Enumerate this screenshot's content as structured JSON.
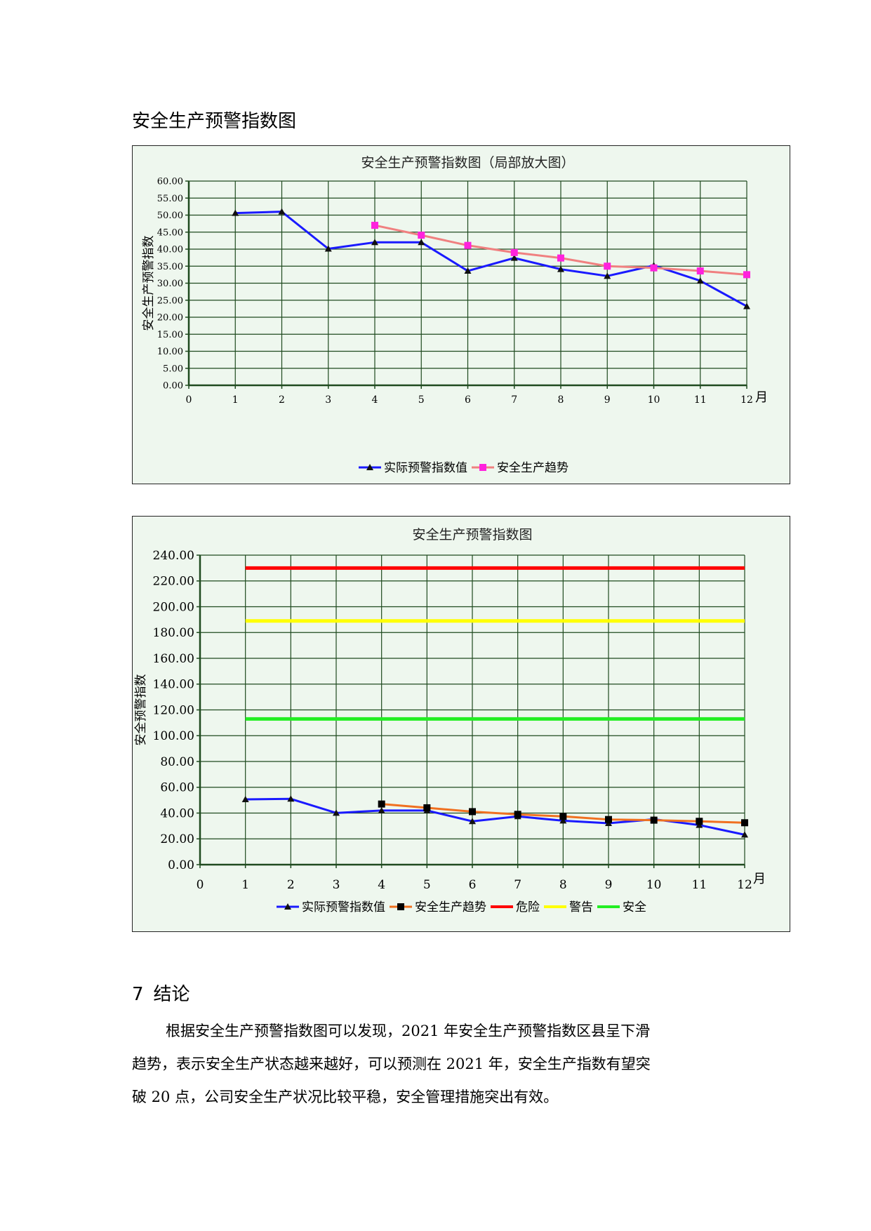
{
  "section_title": "安全生产预警指数图",
  "chart_data": [
    {
      "type": "line",
      "title": "安全生产预警指数图（局部放大图）",
      "ylabel": "安全生产预警指数",
      "x_unit": "月",
      "ylim": [
        0,
        60
      ],
      "y_ticks": [
        "0.00",
        "5.00",
        "10.00",
        "15.00",
        "20.00",
        "25.00",
        "30.00",
        "35.00",
        "40.00",
        "45.00",
        "50.00",
        "55.00",
        "60.00"
      ],
      "x_ticks": [
        "0",
        "1",
        "2",
        "3",
        "4",
        "5",
        "6",
        "7",
        "8",
        "9",
        "10",
        "11",
        "12"
      ],
      "grid": true,
      "legend_position": "bottom",
      "series": [
        {
          "name": "实际预警指数值",
          "color": "#1a1aff",
          "marker": "triangle",
          "x": [
            1,
            2,
            3,
            4,
            5,
            6,
            7,
            8,
            9,
            10,
            11,
            12
          ],
          "values": [
            50.6,
            51.0,
            40.1,
            42.0,
            42.0,
            33.6,
            37.4,
            34.1,
            32.1,
            35.2,
            30.7,
            23.2
          ]
        },
        {
          "name": "安全生产趋势",
          "color": "#f08080",
          "marker": "square",
          "marker_color": "#ff22dd",
          "x": [
            4,
            5,
            6,
            7,
            8,
            9,
            10,
            11,
            12
          ],
          "values": [
            47.0,
            44.1,
            41.1,
            39.0,
            37.4,
            35.0,
            34.5,
            33.6,
            32.5
          ]
        }
      ]
    },
    {
      "type": "line",
      "title": "安全生产预警指数图",
      "ylabel": "安全预警指数",
      "x_unit": "月",
      "ylim": [
        0,
        240
      ],
      "y_ticks": [
        "0.00",
        "20.00",
        "40.00",
        "60.00",
        "80.00",
        "100.00",
        "120.00",
        "140.00",
        "160.00",
        "180.00",
        "200.00",
        "220.00",
        "240.00"
      ],
      "x_ticks": [
        "0",
        "1",
        "2",
        "3",
        "4",
        "5",
        "6",
        "7",
        "8",
        "9",
        "10",
        "11",
        "12"
      ],
      "grid": true,
      "legend_position": "bottom",
      "series": [
        {
          "name": "实际预警指数值",
          "color": "#1a1aff",
          "marker": "triangle",
          "x": [
            1,
            2,
            3,
            4,
            5,
            6,
            7,
            8,
            9,
            10,
            11,
            12
          ],
          "values": [
            50.6,
            51.0,
            40.1,
            42.0,
            42.0,
            33.6,
            37.4,
            34.1,
            32.1,
            35.2,
            30.7,
            23.2
          ]
        },
        {
          "name": "安全生产趋势",
          "color": "#f07020",
          "marker": "square",
          "marker_color": "#000000",
          "x": [
            4,
            5,
            6,
            7,
            8,
            9,
            10,
            11,
            12
          ],
          "values": [
            47.0,
            44.1,
            41.1,
            39.0,
            37.4,
            35.0,
            34.5,
            33.6,
            32.5
          ]
        },
        {
          "name": "危险",
          "color": "#ff0000",
          "marker": "none",
          "x": [
            1,
            12
          ],
          "values": [
            230,
            230
          ]
        },
        {
          "name": "警告",
          "color": "#ffff00",
          "marker": "none",
          "x": [
            1,
            12
          ],
          "values": [
            189,
            189
          ]
        },
        {
          "name": "安全",
          "color": "#22ee22",
          "marker": "none",
          "x": [
            1,
            12
          ],
          "values": [
            113,
            113
          ]
        }
      ]
    }
  ],
  "conclusion": {
    "number": "7",
    "title": "结论",
    "lines": [
      "根据安全生产预警指数图可以发现，2021 年安全生产预警指数区县呈下滑",
      "趋势，表示安全生产状态越来越好，可以预测在 2021 年，安全生产指数有望突",
      "破 20 点，公司安全生产状况比较平稳，安全管理措施突出有效。"
    ]
  }
}
